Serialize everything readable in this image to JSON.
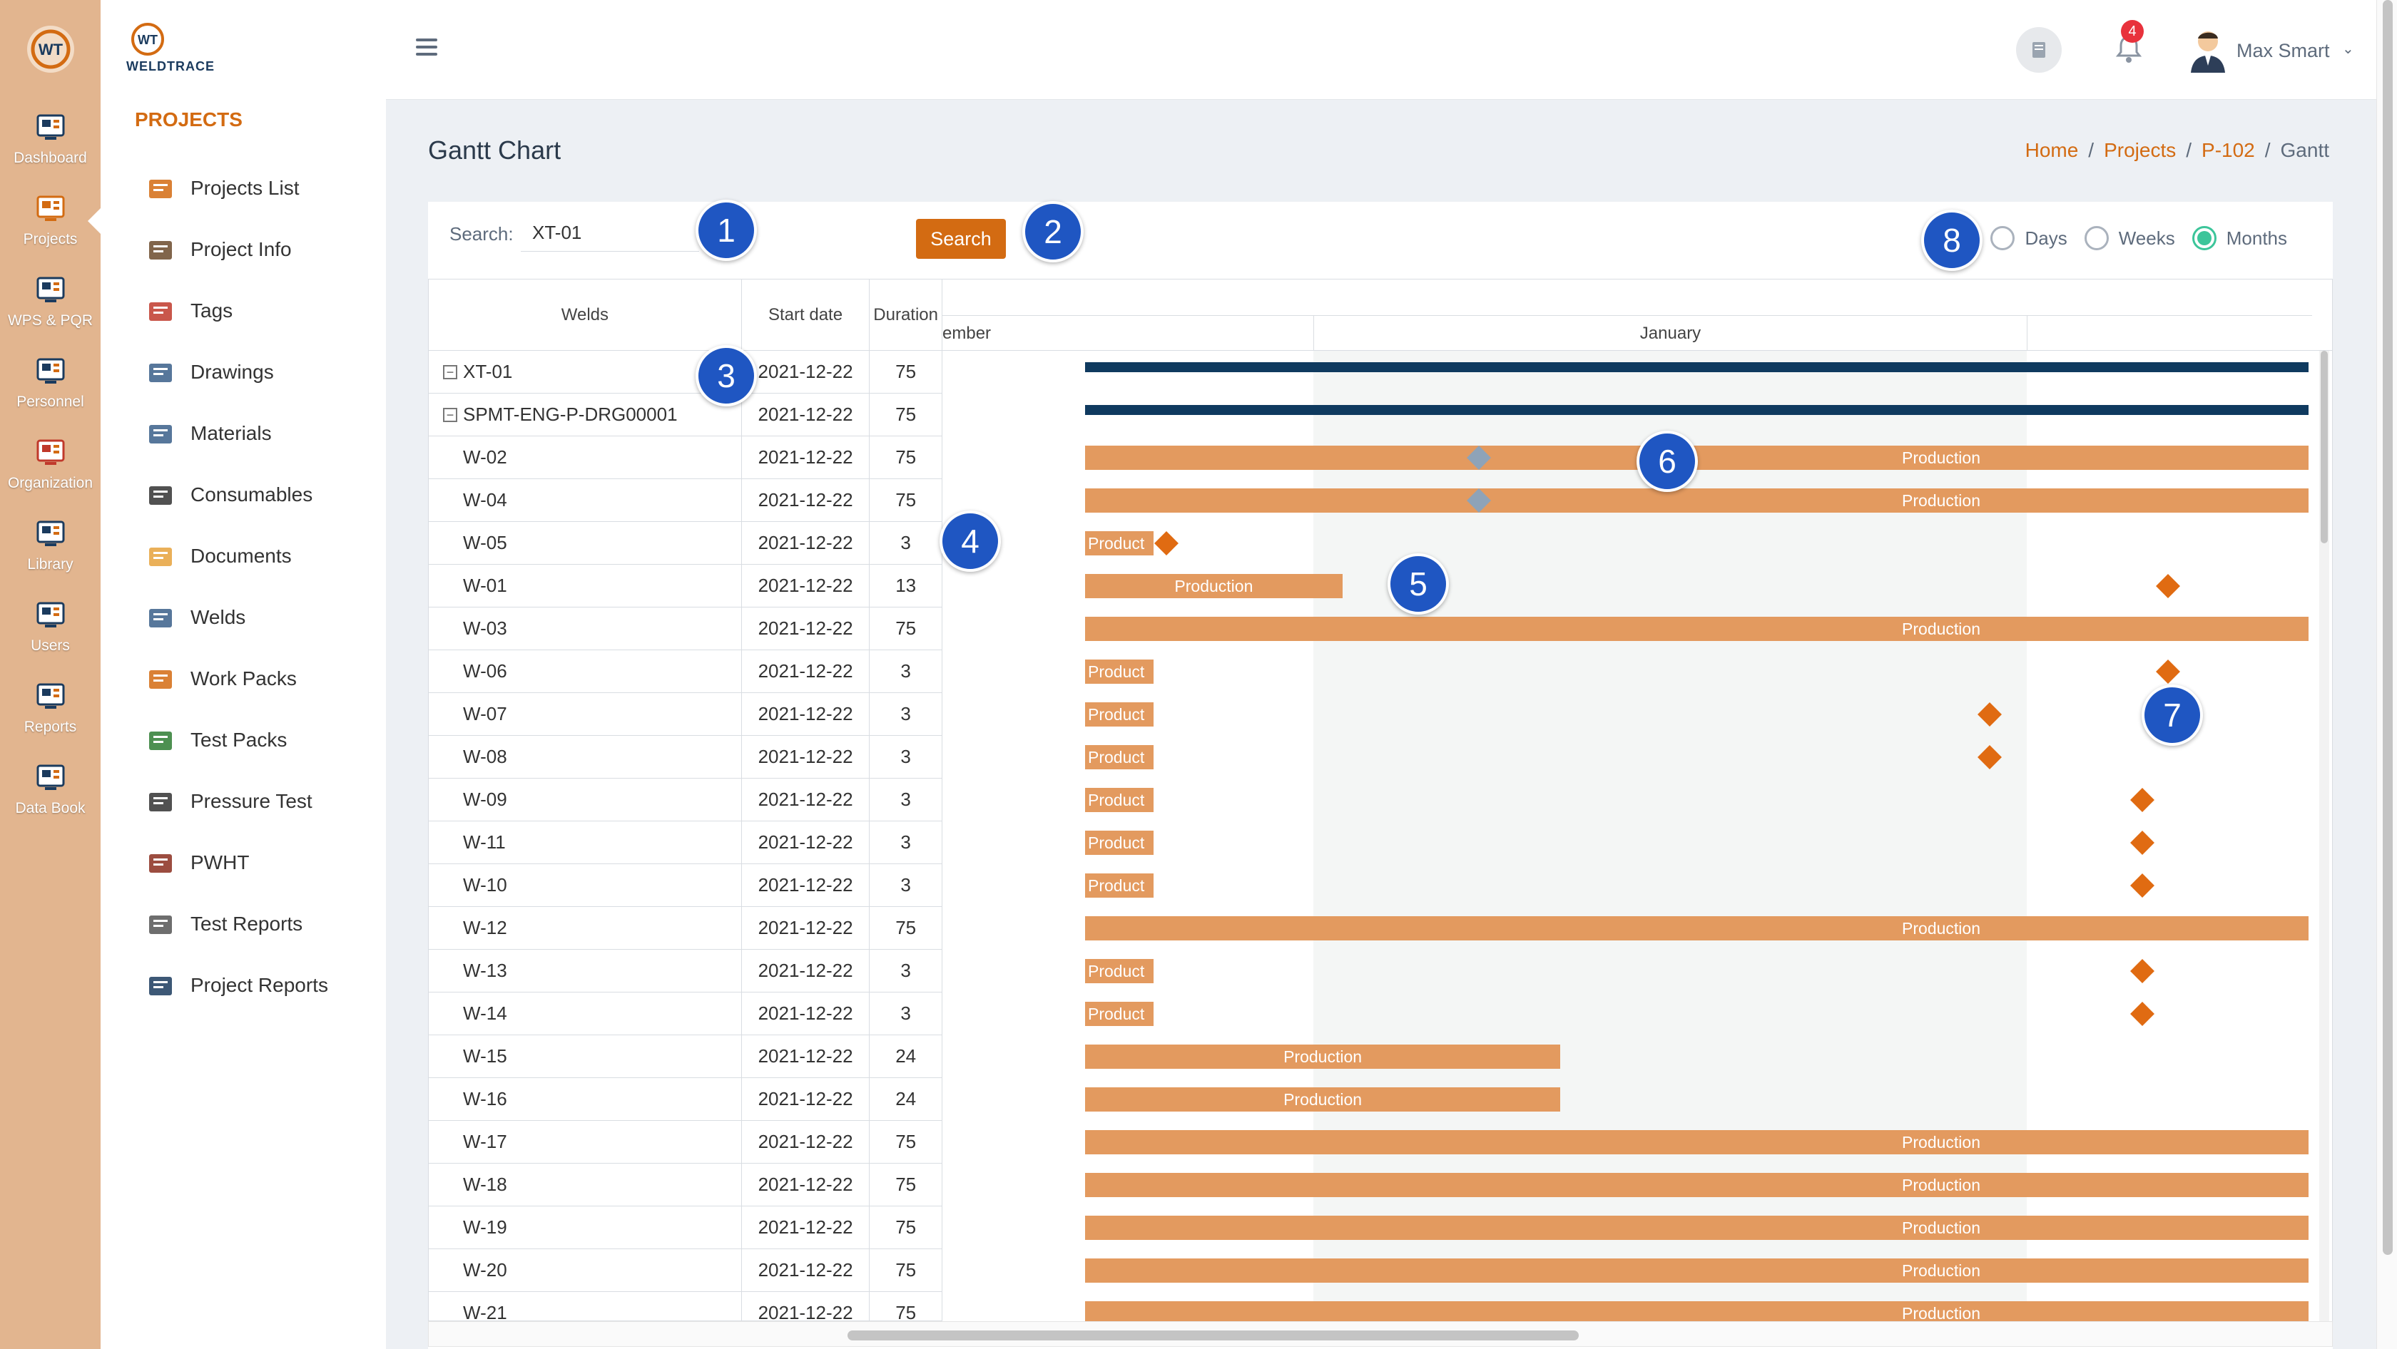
{
  "rail": {
    "items": [
      {
        "label": "Dashboard",
        "icon": "dashboard-icon"
      },
      {
        "label": "Projects",
        "icon": "projects-icon"
      },
      {
        "label": "WPS & PQR",
        "icon": "wps-icon"
      },
      {
        "label": "Personnel",
        "icon": "personnel-icon"
      },
      {
        "label": "Organization",
        "icon": "organization-icon"
      },
      {
        "label": "Library",
        "icon": "library-icon"
      },
      {
        "label": "Users",
        "icon": "users-icon"
      },
      {
        "label": "Reports",
        "icon": "reports-icon"
      },
      {
        "label": "Data Book",
        "icon": "databook-icon"
      }
    ]
  },
  "brand": {
    "name": "WELDTRACE",
    "mark": "WT"
  },
  "sidebar": {
    "title": "PROJECTS",
    "items": [
      {
        "label": "Projects List"
      },
      {
        "label": "Project Info"
      },
      {
        "label": "Tags"
      },
      {
        "label": "Drawings"
      },
      {
        "label": "Materials"
      },
      {
        "label": "Consumables"
      },
      {
        "label": "Documents"
      },
      {
        "label": "Welds"
      },
      {
        "label": "Work Packs"
      },
      {
        "label": "Test Packs"
      },
      {
        "label": "Pressure Test"
      },
      {
        "label": "PWHT"
      },
      {
        "label": "Test Reports"
      },
      {
        "label": "Project Reports"
      }
    ]
  },
  "topbar": {
    "notifications": "4",
    "user": "Max Smart"
  },
  "page": {
    "title": "Gantt Chart",
    "breadcrumb": [
      "Home",
      "Projects",
      "P-102",
      "Gantt"
    ]
  },
  "search": {
    "label": "Search:",
    "value": "XT-01",
    "button": "Search"
  },
  "scale": {
    "options": [
      "Days",
      "Weeks",
      "Months"
    ],
    "selected": "Months"
  },
  "grid": {
    "headers": {
      "welds": "Welds",
      "start": "Start date",
      "duration": "Duration"
    },
    "rows": [
      {
        "name": "XT-01",
        "start": "2021-12-22",
        "duration": "75",
        "level": 0
      },
      {
        "name": "SPMT-ENG-P-DRG00001",
        "start": "2021-12-22",
        "duration": "75",
        "level": 0
      },
      {
        "name": "W-02",
        "start": "2021-12-22",
        "duration": "75",
        "level": 1
      },
      {
        "name": "W-04",
        "start": "2021-12-22",
        "duration": "75",
        "level": 1
      },
      {
        "name": "W-05",
        "start": "2021-12-22",
        "duration": "3",
        "level": 1
      },
      {
        "name": "W-01",
        "start": "2021-12-22",
        "duration": "13",
        "level": 1
      },
      {
        "name": "W-03",
        "start": "2021-12-22",
        "duration": "75",
        "level": 1
      },
      {
        "name": "W-06",
        "start": "2021-12-22",
        "duration": "3",
        "level": 1
      },
      {
        "name": "W-07",
        "start": "2021-12-22",
        "duration": "3",
        "level": 1
      },
      {
        "name": "W-08",
        "start": "2021-12-22",
        "duration": "3",
        "level": 1
      },
      {
        "name": "W-09",
        "start": "2021-12-22",
        "duration": "3",
        "level": 1
      },
      {
        "name": "W-11",
        "start": "2021-12-22",
        "duration": "3",
        "level": 1
      },
      {
        "name": "W-10",
        "start": "2021-12-22",
        "duration": "3",
        "level": 1
      },
      {
        "name": "W-12",
        "start": "2021-12-22",
        "duration": "75",
        "level": 1
      },
      {
        "name": "W-13",
        "start": "2021-12-22",
        "duration": "3",
        "level": 1
      },
      {
        "name": "W-14",
        "start": "2021-12-22",
        "duration": "3",
        "level": 1
      },
      {
        "name": "W-15",
        "start": "2021-12-22",
        "duration": "24",
        "level": 1
      },
      {
        "name": "W-16",
        "start": "2021-12-22",
        "duration": "24",
        "level": 1
      },
      {
        "name": "W-17",
        "start": "2021-12-22",
        "duration": "75",
        "level": 1
      },
      {
        "name": "W-18",
        "start": "2021-12-22",
        "duration": "75",
        "level": 1
      },
      {
        "name": "W-19",
        "start": "2021-12-22",
        "duration": "75",
        "level": 1
      },
      {
        "name": "W-20",
        "start": "2021-12-22",
        "duration": "75",
        "level": 1
      },
      {
        "name": "W-21",
        "start": "2021-12-22",
        "duration": "75",
        "level": 1
      }
    ]
  },
  "timeline": {
    "months": [
      "ember",
      "January"
    ],
    "bar_label_long": "Production",
    "bar_label_short": "Product"
  },
  "callouts": [
    "1",
    "2",
    "3",
    "4",
    "5",
    "6",
    "7",
    "8"
  ],
  "colors": {
    "accent": "#d36b12",
    "rail": "#e2b58f",
    "bar": "#e39a5f",
    "parent_bar": "#0f3a5f",
    "milestone": "#e06b12",
    "radio_checked": "#3cc59a",
    "callout": "#1f56c2"
  }
}
